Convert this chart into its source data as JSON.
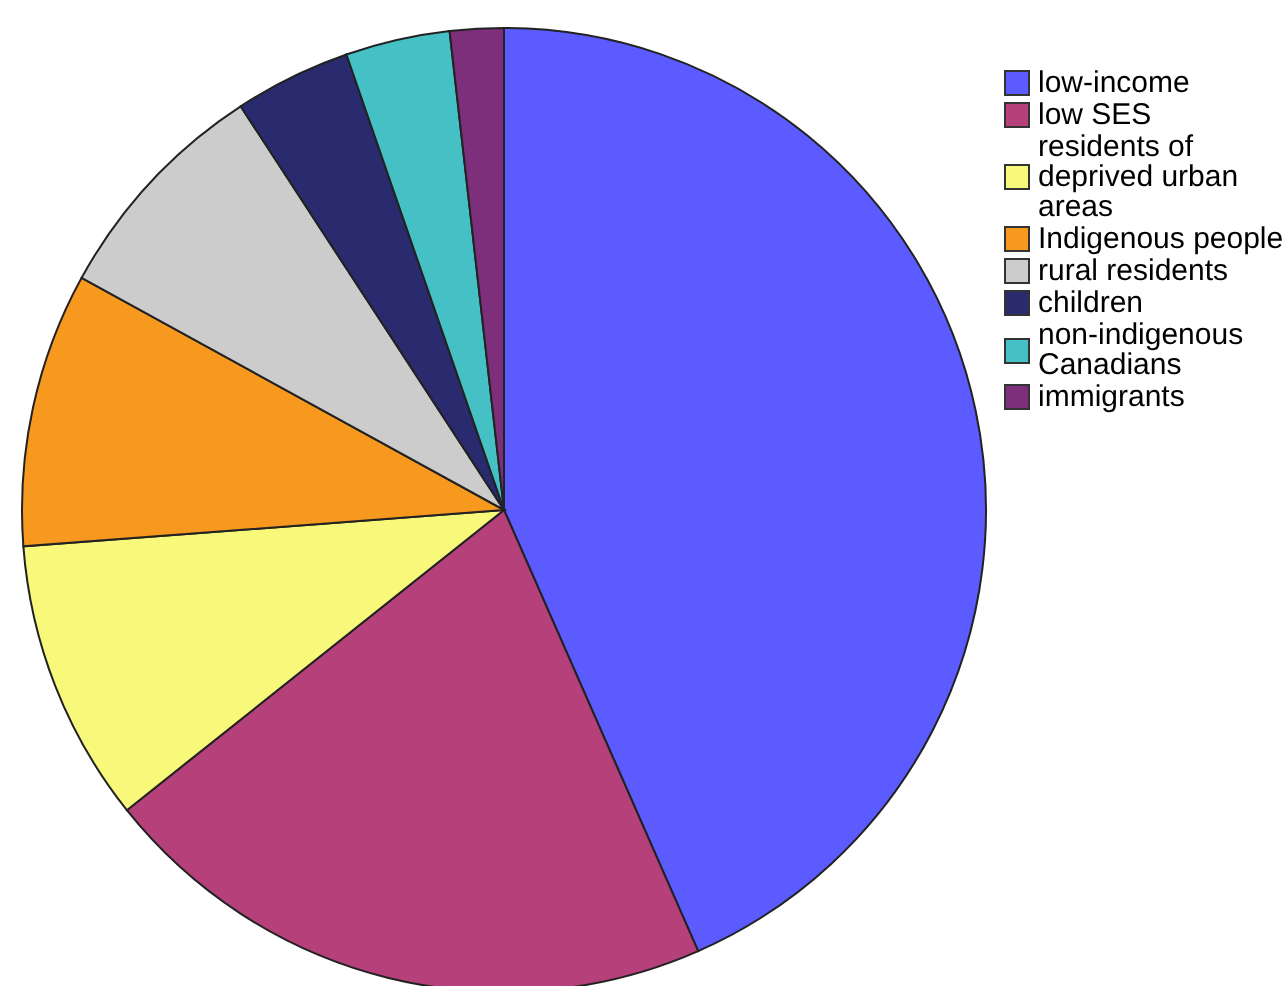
{
  "chart_data": {
    "type": "pie",
    "categories": [
      "low-income",
      "low SES",
      "residents of deprived urban areas",
      "Indigenous people",
      "rural residents",
      "children",
      "non-indigenous Canadians",
      "immigrants"
    ],
    "values": [
      43.4,
      20.9,
      9.5,
      9.2,
      7.8,
      3.9,
      3.5,
      1.8
    ],
    "colors": [
      "#5b5bff",
      "#b5407a",
      "#f8f87a",
      "#f7981f",
      "#cccccc",
      "#2a2a6e",
      "#45c1c5",
      "#7d2f7c"
    ],
    "legend": "top right"
  }
}
